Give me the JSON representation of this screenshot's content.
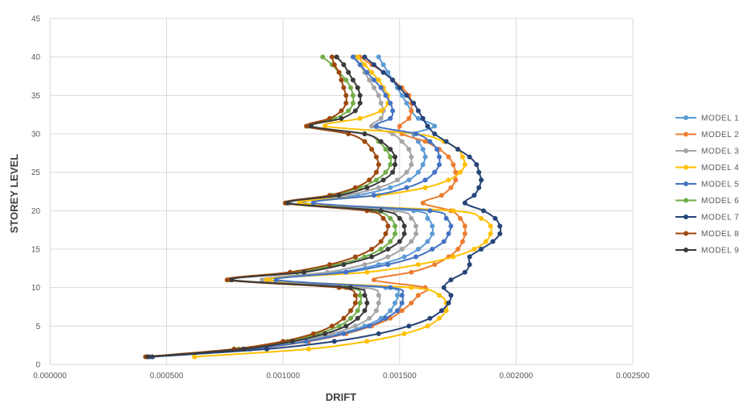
{
  "chart_data": {
    "type": "line",
    "xlabel": "DRIFT",
    "ylabel": "STOREY LEVEL",
    "xlim": [
      0,
      0.0025
    ],
    "ylim": [
      0,
      45
    ],
    "x_ticks": [
      "0.000000",
      "0.000500",
      "0.001000",
      "0.001500",
      "0.002000",
      "0.002500"
    ],
    "x_tick_values": [
      0,
      0.0005,
      0.001,
      0.0015,
      0.002,
      0.0025
    ],
    "y_ticks": [
      "0",
      "5",
      "10",
      "15",
      "20",
      "25",
      "30",
      "35",
      "40",
      "45"
    ],
    "y_tick_values": [
      0,
      5,
      10,
      15,
      20,
      25,
      30,
      35,
      40,
      45
    ],
    "grid": true,
    "legend_position": "right",
    "storeys": [
      1,
      2,
      3,
      4,
      5,
      6,
      7,
      8,
      9,
      10,
      11,
      12,
      13,
      14,
      15,
      16,
      17,
      18,
      19,
      20,
      21,
      22,
      23,
      24,
      25,
      26,
      27,
      28,
      29,
      30,
      31,
      32,
      33,
      34,
      35,
      36,
      37,
      38,
      39,
      40
    ],
    "series": [
      {
        "name": "MODEL 1",
        "color": "#5B9BD5",
        "values": [
          0.00043,
          0.00085,
          0.00109,
          0.00124,
          0.00135,
          0.00142,
          0.00146,
          0.00148,
          0.00149,
          0.00144,
          0.00094,
          0.00124,
          0.00141,
          0.00152,
          0.00158,
          0.00162,
          0.00164,
          0.00164,
          0.00162,
          0.00156,
          0.00109,
          0.00132,
          0.00146,
          0.00154,
          0.00158,
          0.0016,
          0.00161,
          0.0016,
          0.00158,
          0.00156,
          0.00165,
          0.00158,
          0.00155,
          0.00153,
          0.00151,
          0.00149,
          0.00147,
          0.00145,
          0.00143,
          0.00141
        ]
      },
      {
        "name": "MODEL 2",
        "color": "#ED7D31",
        "values": [
          0.00043,
          0.00086,
          0.00111,
          0.00127,
          0.00138,
          0.00146,
          0.00151,
          0.00155,
          0.00158,
          0.00161,
          0.00139,
          0.00155,
          0.00165,
          0.00171,
          0.00175,
          0.00177,
          0.00178,
          0.00178,
          0.00176,
          0.00172,
          0.0016,
          0.00168,
          0.00172,
          0.00174,
          0.00174,
          0.00173,
          0.00171,
          0.00167,
          0.00161,
          0.00151,
          0.0015,
          0.00154,
          0.00155,
          0.00155,
          0.00154,
          0.00151,
          0.00147,
          0.00143,
          0.00138,
          0.00133
        ]
      },
      {
        "name": "MODEL 3",
        "color": "#A5A5A5",
        "values": [
          0.00043,
          0.00084,
          0.00107,
          0.00121,
          0.00131,
          0.00137,
          0.0014,
          0.00141,
          0.00141,
          0.00135,
          0.00091,
          0.00119,
          0.00135,
          0.00145,
          0.00151,
          0.00155,
          0.00157,
          0.00157,
          0.00155,
          0.00148,
          0.00103,
          0.00127,
          0.00141,
          0.00149,
          0.00153,
          0.00155,
          0.00155,
          0.00154,
          0.00151,
          0.00147,
          0.00138,
          0.00142,
          0.00143,
          0.00142,
          0.00141,
          0.00139,
          0.00137,
          0.00135,
          0.00133,
          0.00131
        ]
      },
      {
        "name": "MODEL 4",
        "color": "#FFC000",
        "values": [
          0.00062,
          0.00111,
          0.00136,
          0.00152,
          0.00162,
          0.00167,
          0.0017,
          0.0017,
          0.00167,
          0.00155,
          0.00093,
          0.00136,
          0.00158,
          0.00173,
          0.00182,
          0.00187,
          0.00189,
          0.00189,
          0.00185,
          0.00173,
          0.00107,
          0.00141,
          0.00161,
          0.00171,
          0.00176,
          0.00178,
          0.00177,
          0.00175,
          0.00169,
          0.00157,
          0.00118,
          0.00133,
          0.00142,
          0.00145,
          0.00145,
          0.00143,
          0.00141,
          0.00138,
          0.00135,
          0.00132
        ]
      },
      {
        "name": "MODEL 5",
        "color": "#4472C4",
        "values": [
          0.00043,
          0.00086,
          0.0011,
          0.00126,
          0.00137,
          0.00144,
          0.00149,
          0.00151,
          0.00151,
          0.00146,
          0.00097,
          0.00127,
          0.00145,
          0.00157,
          0.00164,
          0.00169,
          0.00171,
          0.00172,
          0.0017,
          0.00163,
          0.00113,
          0.00139,
          0.00153,
          0.00161,
          0.00165,
          0.00167,
          0.00167,
          0.00166,
          0.00163,
          0.00157,
          0.0014,
          0.00146,
          0.00147,
          0.00146,
          0.00144,
          0.00142,
          0.00139,
          0.00136,
          0.00133,
          0.0013
        ]
      },
      {
        "name": "MODEL 6",
        "color": "#70AD47",
        "values": [
          0.00042,
          0.00081,
          0.00102,
          0.00115,
          0.00124,
          0.00129,
          0.00132,
          0.00133,
          0.00133,
          0.00127,
          0.00077,
          0.00106,
          0.00123,
          0.00135,
          0.00142,
          0.00146,
          0.00148,
          0.00148,
          0.00146,
          0.00138,
          0.00101,
          0.00121,
          0.00133,
          0.0014,
          0.00144,
          0.00146,
          0.00146,
          0.00144,
          0.00141,
          0.00135,
          0.00111,
          0.00122,
          0.00128,
          0.0013,
          0.0013,
          0.00129,
          0.00127,
          0.00124,
          0.00121,
          0.00117
        ]
      },
      {
        "name": "MODEL 7",
        "color": "#264478",
        "values": [
          0.00044,
          0.00093,
          0.00122,
          0.00141,
          0.00154,
          0.00163,
          0.00168,
          0.00171,
          0.00172,
          0.00169,
          0.00172,
          0.00178,
          0.0018,
          0.0018,
          0.00185,
          0.0019,
          0.00193,
          0.00193,
          0.00191,
          0.00186,
          0.00178,
          0.00182,
          0.00184,
          0.00185,
          0.00184,
          0.00183,
          0.0018,
          0.00175,
          0.0017,
          0.00165,
          0.00162,
          0.0016,
          0.00158,
          0.00156,
          0.00153,
          0.0015,
          0.00147,
          0.00143,
          0.00139,
          0.00135
        ]
      },
      {
        "name": "MODEL 8",
        "color": "#9E480E",
        "values": [
          0.00041,
          0.00079,
          0.001,
          0.00113,
          0.00121,
          0.00126,
          0.00129,
          0.00131,
          0.00131,
          0.00124,
          0.00076,
          0.00103,
          0.0012,
          0.00131,
          0.00138,
          0.00142,
          0.00144,
          0.00145,
          0.00143,
          0.00136,
          0.00101,
          0.0012,
          0.00131,
          0.00137,
          0.0014,
          0.00141,
          0.0014,
          0.00138,
          0.00135,
          0.00128,
          0.0011,
          0.0012,
          0.00125,
          0.00127,
          0.00127,
          0.00126,
          0.00125,
          0.00124,
          0.00122,
          0.00121
        ]
      },
      {
        "name": "MODEL 9",
        "color": "#3A3A3A",
        "values": [
          0.00042,
          0.00083,
          0.00104,
          0.00118,
          0.00127,
          0.00132,
          0.00135,
          0.00136,
          0.00135,
          0.00129,
          0.00078,
          0.00109,
          0.00126,
          0.00138,
          0.00145,
          0.0015,
          0.00152,
          0.00152,
          0.0015,
          0.00142,
          0.00102,
          0.00124,
          0.00136,
          0.00143,
          0.00147,
          0.00148,
          0.00148,
          0.00146,
          0.00142,
          0.00135,
          0.00112,
          0.00125,
          0.00131,
          0.00133,
          0.00133,
          0.00132,
          0.0013,
          0.00128,
          0.00126,
          0.00123
        ]
      }
    ]
  }
}
